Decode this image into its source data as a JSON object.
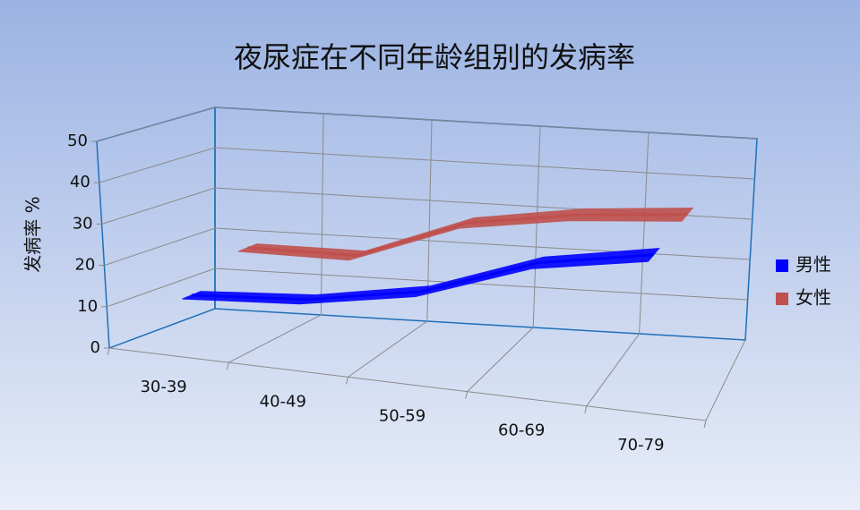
{
  "chart_data": {
    "type": "line3d",
    "title": "夜尿症在不同年龄组别的发病率",
    "y_label": "发病率 %",
    "categories": [
      "30-39",
      "40-49",
      "50-59",
      "60-69",
      "70-79"
    ],
    "series": [
      {
        "name": "男性",
        "color": "#0000ff",
        "values": [
          12,
          14,
          19,
          29,
          34
        ]
      },
      {
        "name": "女性",
        "color": "#c0504d",
        "values": [
          18,
          18,
          28,
          32,
          34
        ]
      }
    ],
    "ylim": [
      0,
      50
    ],
    "yticks": [
      0,
      10,
      20,
      30,
      40,
      50
    ],
    "grid": true,
    "legend": "right"
  }
}
